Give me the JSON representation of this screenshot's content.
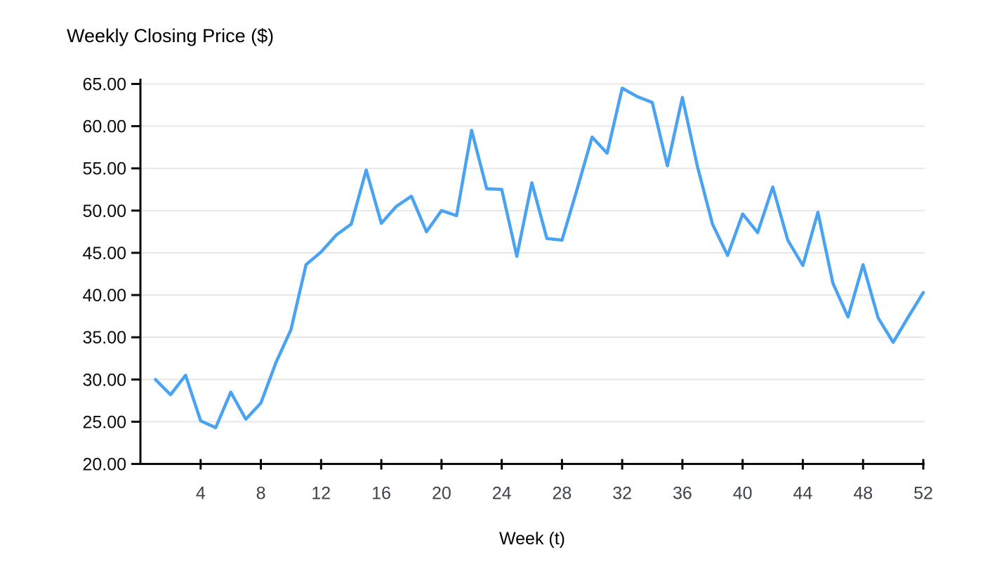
{
  "chart_data": {
    "type": "line",
    "title": "Weekly Closing Price ($)",
    "xlabel": "Week (t)",
    "ylabel": "Weekly Closing Price ($)",
    "series_name": "Weekly Closing Price",
    "x": [
      1,
      2,
      3,
      4,
      5,
      6,
      7,
      8,
      9,
      10,
      11,
      12,
      13,
      14,
      15,
      16,
      17,
      18,
      19,
      20,
      21,
      22,
      23,
      24,
      25,
      26,
      27,
      28,
      29,
      30,
      31,
      32,
      33,
      34,
      35,
      36,
      37,
      38,
      39,
      40,
      41,
      42,
      43,
      44,
      45,
      46,
      47,
      48,
      49,
      50,
      51,
      52
    ],
    "values": [
      30.0,
      28.2,
      30.5,
      25.1,
      24.3,
      28.5,
      25.3,
      27.2,
      32.0,
      35.9,
      43.6,
      45.1,
      47.1,
      48.4,
      54.8,
      48.5,
      50.5,
      51.7,
      47.5,
      50.0,
      49.4,
      59.5,
      52.6,
      52.5,
      44.6,
      53.3,
      46.7,
      46.5,
      52.5,
      58.7,
      56.8,
      64.5,
      63.5,
      62.8,
      55.3,
      63.4,
      55.2,
      48.4,
      44.7,
      49.6,
      47.4,
      52.8,
      46.5,
      43.5,
      49.8,
      41.4,
      37.4,
      43.6,
      37.3,
      34.4,
      37.4,
      40.3
    ],
    "xlim": [
      0,
      52
    ],
    "ylim": [
      20,
      65
    ],
    "x_ticks": [
      4,
      8,
      12,
      16,
      20,
      24,
      28,
      32,
      36,
      40,
      44,
      48,
      52
    ],
    "x_tick_labels": [
      "4",
      "8",
      "12",
      "16",
      "20",
      "24",
      "28",
      "32",
      "36",
      "40",
      "44",
      "48",
      "52"
    ],
    "y_ticks": [
      20,
      25,
      30,
      35,
      40,
      45,
      50,
      55,
      60,
      65
    ],
    "y_tick_labels": [
      "20.00",
      "25.00",
      "30.00",
      "35.00",
      "40.00",
      "45.00",
      "50.00",
      "55.00",
      "60.00",
      "65.00"
    ],
    "grid": "horizontal",
    "legend": "none",
    "line_color": "#4aa3f2",
    "grid_color": "#e7e7e7",
    "axis_color": "#0b0b0b",
    "x_tick_label_color": "#3d4349",
    "y_tick_label_color": "#0b0b0b"
  }
}
